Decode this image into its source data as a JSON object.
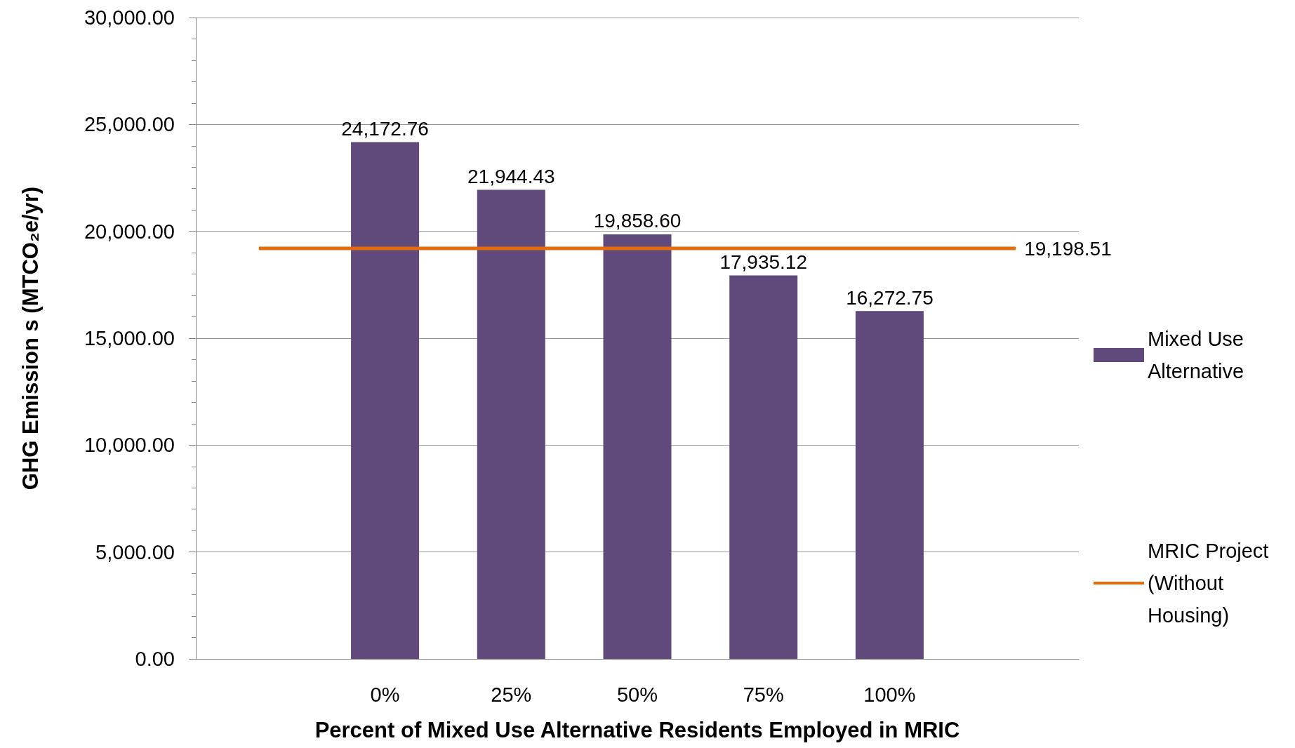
{
  "chart_data": {
    "type": "bar",
    "xlabel": "Percent of Mixed Use Alternative Residents Employed in MRIC",
    "ylabel": "GHG Emission s (MTCO₂e/yr)",
    "categories": [
      null,
      "0%",
      "25%",
      "50%",
      "75%",
      "100%",
      null
    ],
    "series": [
      {
        "name": "Mixed Use Alternative",
        "color": "#604a7b",
        "values": [
          null,
          24172.76,
          21944.43,
          19858.6,
          17935.12,
          16272.75,
          null
        ],
        "value_labels": [
          null,
          "24,172.76",
          "21,944.43",
          "19,858.60",
          "17,935.12",
          "16,272.75",
          null
        ]
      },
      {
        "name": "MRIC Project (Without Housing)",
        "type": "line",
        "color": "#e46c0a",
        "marker": "none",
        "line_style": "solid",
        "values": [
          19198.51,
          19198.51,
          19198.51,
          19198.51,
          19198.51,
          19198.51,
          19198.51
        ],
        "value_labels": [
          null,
          null,
          null,
          null,
          null,
          null,
          "19,198.51"
        ]
      }
    ],
    "ylim": [
      0,
      30000
    ],
    "yticks": [
      {
        "value": 0,
        "label": "0.00"
      },
      {
        "value": 5000,
        "label": "5,000.00"
      },
      {
        "value": 10000,
        "label": "10,000.00"
      },
      {
        "value": 15000,
        "label": "15,000.00"
      },
      {
        "value": 20000,
        "label": "20,000.00"
      },
      {
        "value": 25000,
        "label": "25,000.00"
      },
      {
        "value": 30000,
        "label": "30,000.00"
      }
    ],
    "grid": "y",
    "legend": "right"
  }
}
